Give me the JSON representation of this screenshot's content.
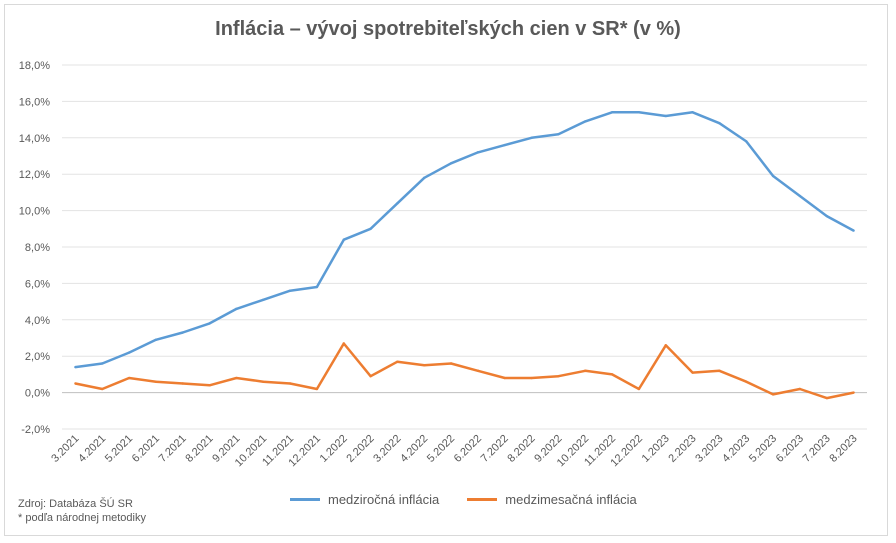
{
  "chart_data": {
    "type": "line",
    "title": "Inflácia –  vývoj spotrebiteľských cien v SR* (v %)",
    "x": [
      "3.2021",
      "4.2021",
      "5.2021",
      "6.2021",
      "7.2021",
      "8.2021",
      "9.2021",
      "10.2021",
      "11.2021",
      "12.2021",
      "1.2022",
      "2.2022",
      "3.2022",
      "4.2022",
      "5.2022",
      "6.2022",
      "7.2022",
      "8.2022",
      "9.2022",
      "10.2022",
      "11.2022",
      "12.2022",
      "1.2023",
      "2.2023",
      "3.2023",
      "4.2023",
      "5.2023",
      "6.2023",
      "7.2023",
      "8.2023"
    ],
    "ylim": [
      -2,
      18
    ],
    "yticks": [
      "-2,0%",
      "0,0%",
      "2,0%",
      "4,0%",
      "6,0%",
      "8,0%",
      "10,0%",
      "12,0%",
      "14,0%",
      "16,0%",
      "18,0%"
    ],
    "grid": true,
    "legend_position": "bottom",
    "series": [
      {
        "name": "medziročná inflácia",
        "color": "#5b9bd5",
        "values": [
          1.4,
          1.6,
          2.2,
          2.9,
          3.3,
          3.8,
          4.6,
          5.1,
          5.6,
          5.8,
          8.4,
          9.0,
          10.4,
          11.8,
          12.6,
          13.2,
          13.6,
          14.0,
          14.2,
          14.9,
          15.4,
          15.4,
          15.2,
          15.4,
          14.8,
          13.8,
          11.9,
          10.8,
          9.7,
          8.9
        ]
      },
      {
        "name": "medzimesačná inflácia",
        "color": "#ed7d31",
        "values": [
          0.5,
          0.2,
          0.8,
          0.6,
          0.5,
          0.4,
          0.8,
          0.6,
          0.5,
          0.2,
          2.7,
          0.9,
          1.7,
          1.5,
          1.6,
          1.2,
          0.8,
          0.8,
          0.9,
          1.2,
          1.0,
          0.2,
          2.6,
          1.1,
          1.2,
          0.6,
          -0.1,
          0.2,
          -0.3,
          0.0
        ]
      }
    ]
  },
  "footnote": {
    "source": "Zdroj: Databáza ŠÚ SR",
    "method": "* podľa národnej metodiky"
  }
}
